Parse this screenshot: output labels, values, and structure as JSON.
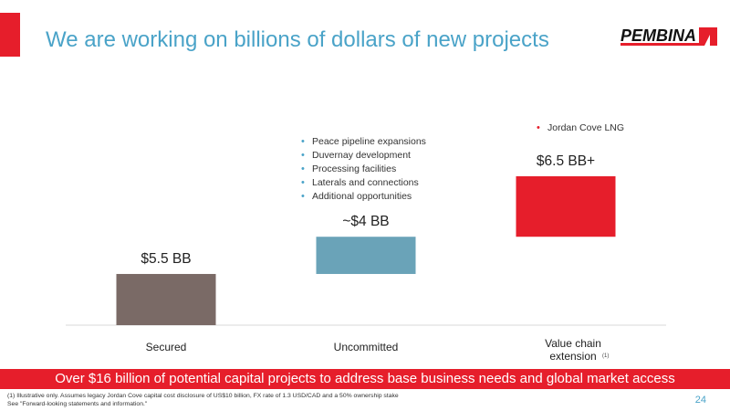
{
  "slide": {
    "title": "We are working on billions of dollars of new projects",
    "logo_text": "PEMBINA",
    "banner": "Over $16 billion of potential capital projects to address base business needs and global market access",
    "footnote_line1": "(1) Illustrative only. Assumes legacy Jordan Cove capital cost disclosure of US$10 billion, FX rate of 1.3 USD/CAD and a 50% ownership stake",
    "footnote_line2": "See \"Forward-looking statements and information.\"",
    "page_number": "24",
    "bullet_symbol": "•"
  },
  "colors": {
    "accent_red": "#e61e2b",
    "title_blue": "#4aa3c8",
    "bar_secured": "#7a6a66",
    "bar_uncommitted": "#6aa3b8",
    "bar_value_chain": "#e61e2b",
    "bullet_blue": "#4aa3c8",
    "bullet_red": "#e61e2b"
  },
  "chart_data": {
    "type": "bar",
    "subtype": "waterfall",
    "categories": [
      "Secured",
      "Uncommitted",
      "Value chain extension"
    ],
    "category_superscripts": [
      "",
      "",
      "(1)"
    ],
    "values": [
      5.5,
      4,
      6.5
    ],
    "value_labels": [
      "$5.5 BB",
      "~$4 BB",
      "$6.5 BB+"
    ],
    "unit": "BB",
    "cumulative_end": 16,
    "ylim": [
      0,
      16
    ],
    "grid": false,
    "legend": "none",
    "annotations": [
      [],
      [
        "Peace pipeline expansions",
        "Duvernay development",
        "Processing facilities",
        "Laterals and connections",
        "Additional opportunities"
      ],
      [
        "Jordan Cove LNG"
      ]
    ]
  }
}
